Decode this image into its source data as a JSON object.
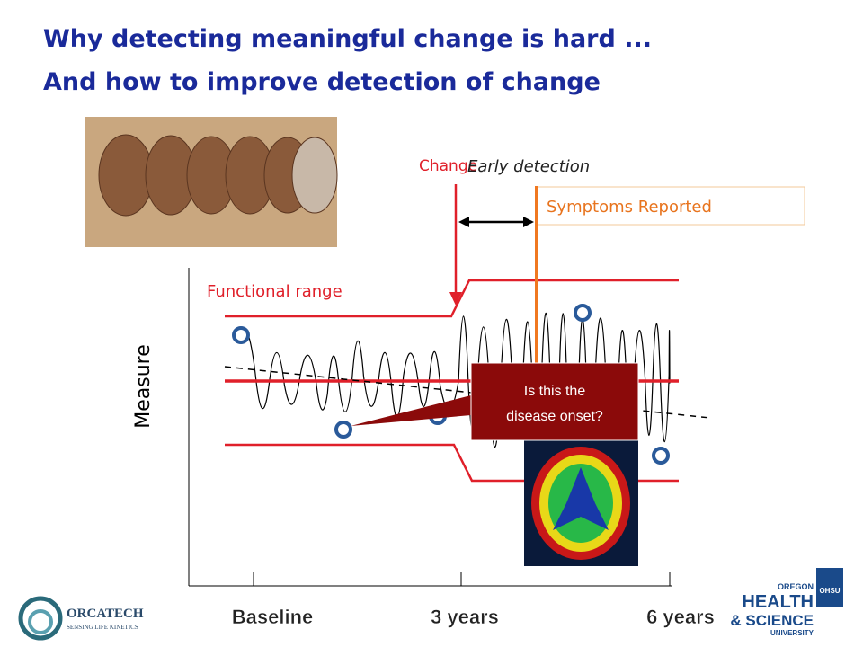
{
  "title": {
    "line1": "Why detecting meaningful change is hard ...",
    "line2": "And how to improve detection of change"
  },
  "diagram": {
    "change": "Change",
    "early_detection": "Early detection",
    "symptoms": "Symptoms Reported",
    "functional_range": "Functional range",
    "y_axis": "Measure",
    "callout": [
      "Is this the",
      "disease onset?"
    ],
    "x_labels": [
      "Baseline",
      "3 years",
      "6 years"
    ]
  },
  "logos": {
    "orcatech": "ORCATECH",
    "orcatech_tagline": "SENSING LIFE KINETICS",
    "ohsu": [
      "OREGON",
      "HEALTH",
      "& SCIENCE",
      "UNIVERSITY"
    ],
    "ohsu_badge": "OHSU"
  }
}
